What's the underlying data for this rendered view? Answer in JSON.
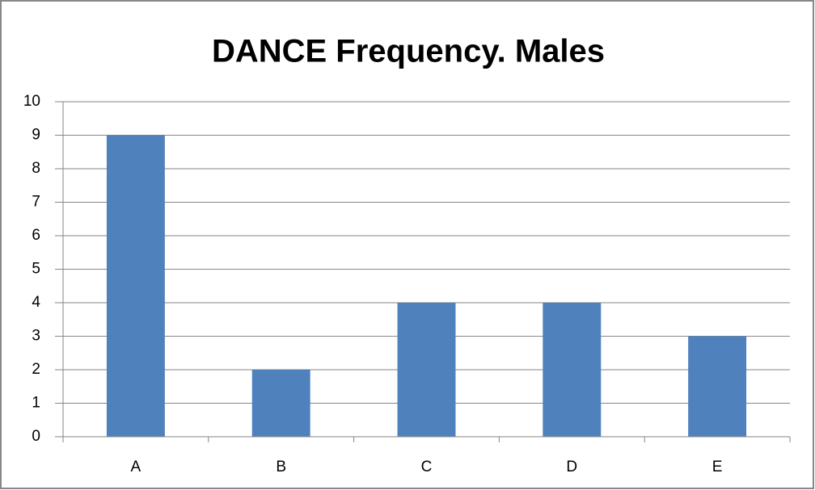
{
  "chart_data": {
    "type": "bar",
    "title": "DANCE Frequency. Males",
    "categories": [
      "A",
      "B",
      "C",
      "D",
      "E"
    ],
    "values": [
      9,
      2,
      4,
      4,
      3
    ],
    "color": "#4f81bd",
    "ylim": [
      0,
      10
    ],
    "yticks": [
      0,
      1,
      2,
      3,
      4,
      5,
      6,
      7,
      8,
      9,
      10
    ],
    "grid": true
  }
}
